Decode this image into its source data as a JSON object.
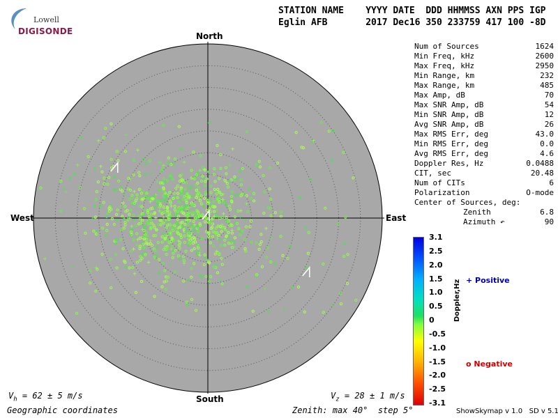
{
  "logo": {
    "top_text": "Lowell",
    "bottom_text": "DIGISONDE"
  },
  "header": {
    "line1": "STATION NAME    YYYY DATE  DDD HHMMSS AXN PPS IGP",
    "line2": "Eglin AFB       2017 Dec16 350 233759 417 100 -8D"
  },
  "compass": {
    "north": "North",
    "south": "South",
    "east": "East",
    "west": "West"
  },
  "stats": [
    {
      "label": "Num of Sources",
      "value": "1624"
    },
    {
      "label": "Min Freq, kHz",
      "value": "2600"
    },
    {
      "label": "Max Freq, kHz",
      "value": "2950"
    },
    {
      "label": "Min Range, km",
      "value": "232"
    },
    {
      "label": "Max Range, km",
      "value": "485"
    },
    {
      "label": "Max Amp, dB",
      "value": "70"
    },
    {
      "label": "Max SNR Amp, dB",
      "value": "54"
    },
    {
      "label": "Min SNR Amp, dB",
      "value": "12"
    },
    {
      "label": "Avg SNR Amp, dB",
      "value": "26"
    },
    {
      "label": "Max RMS Err, deg",
      "value": "43.0"
    },
    {
      "label": "Min RMS Err, deg",
      "value": "0.0"
    },
    {
      "label": "Avg RMS Err, deg",
      "value": "4.6"
    },
    {
      "label": "Doppler Res, Hz",
      "value": "0.0488"
    },
    {
      "label": "CIT, sec",
      "value": "20.48"
    },
    {
      "label": "Num of CITs",
      "value": "6"
    },
    {
      "label": "Polarization",
      "value": "O-mode"
    }
  ],
  "center": {
    "title": "Center of Sources, deg:",
    "zenith_label": "Zenith",
    "zenith_value": "6.8",
    "azimuth_label": "Azimuth ↶",
    "azimuth_value": "90"
  },
  "doppler_scale": {
    "labels": [
      "3.1",
      "2.5",
      "2.0",
      "1.5",
      "1.0",
      "0.5",
      "0",
      "-0.5",
      "-1.0",
      "-1.5",
      "-2.0",
      "-2.5",
      "-3.1"
    ],
    "axis_label": "Doppler,Hz"
  },
  "legend": {
    "positive": "+ Positive",
    "negative": "o Negative",
    "positive_color": "#0000aa",
    "negative_color": "#cc0000"
  },
  "footer": {
    "vh": "V",
    "vh_sub": "h",
    "vh_rest": " = 62 ± 5 m/s",
    "vz": "V",
    "vz_sub": "z",
    "vz_rest": " = 28 ± 1 m/s",
    "coords": "Geographic coordinates",
    "zenith": "Zenith: max 40°  step 5°",
    "version": "ShowSkymap v 1.0   SD v 5.1"
  },
  "chart_data": {
    "type": "scatter",
    "title": "",
    "zenith_max_deg": 40,
    "zenith_step_deg": 5,
    "num_sources": 1624,
    "source_center": {
      "zenith_deg": 6.8,
      "azimuth_deg": 90
    },
    "doppler_range_hz": [
      -3.1,
      3.1
    ],
    "cluster_mean_xy_deg": [
      -7,
      0
    ],
    "cluster_spread_deg": [
      9,
      6
    ],
    "velocity_vectors": [
      {
        "x_deg": -21,
        "y_deg": 12
      },
      {
        "x_deg": 0,
        "y_deg": 1
      },
      {
        "x_deg": 23,
        "y_deg": -12
      }
    ]
  }
}
